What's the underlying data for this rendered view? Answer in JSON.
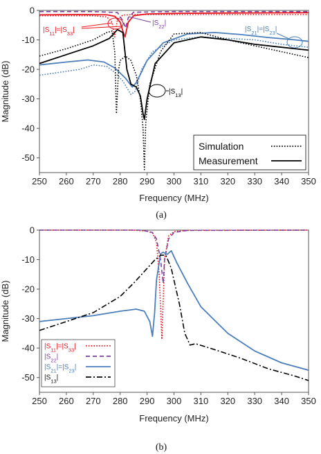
{
  "chart_data": [
    {
      "panel": "(a)",
      "type": "line",
      "xlabel": "Frequency (MHz)",
      "ylabel": "Magnitude (dB)",
      "xlim": [
        250,
        350
      ],
      "ylim": [
        -55,
        0
      ],
      "xticks": [
        250,
        260,
        270,
        280,
        290,
        300,
        310,
        320,
        330,
        340,
        350
      ],
      "yticks": [
        0,
        -10,
        -20,
        -30,
        -40,
        -50
      ],
      "legend": {
        "placement": "bottom-right",
        "entries": [
          {
            "label": "Simulation",
            "style": "dotted",
            "color": "#000000"
          },
          {
            "label": "Measurement",
            "style": "solid",
            "color": "#000000"
          }
        ]
      },
      "annotations": [
        {
          "text": "|S11|=|S33|",
          "color": "#e8141c"
        },
        {
          "text": "|S22|",
          "color": "#7b3fa0"
        },
        {
          "text": "|S21|=|S23|",
          "color": "#4a7ebb"
        },
        {
          "text": "|S13|",
          "color": "#000000"
        }
      ],
      "series": [
        {
          "label": "|S11|=|S33|",
          "style": "dotted",
          "color": "#e8141c",
          "x": [
            250,
            260,
            270,
            275,
            277,
            278,
            279,
            281,
            285,
            300,
            320,
            350
          ],
          "y": [
            -1.8,
            -1.8,
            -1.8,
            -2.2,
            -4,
            -9,
            -3,
            -1.6,
            -1.4,
            -1.4,
            -1.4,
            -1.4
          ]
        },
        {
          "label": "|S11|=|S33|",
          "style": "solid",
          "color": "#e8141c",
          "x": [
            250,
            265,
            275,
            278,
            280,
            281,
            281.8,
            283,
            285,
            290,
            300,
            320,
            350
          ],
          "y": [
            -1.5,
            -1.4,
            -1.5,
            -2,
            -4,
            -7,
            -9,
            -4,
            -1.8,
            -1.2,
            -1.0,
            -0.9,
            -0.8
          ]
        },
        {
          "label": "|S22|",
          "style": "dashed",
          "color": "#7b3fa0",
          "x": [
            250,
            270,
            279,
            281,
            282,
            283,
            285,
            300,
            350
          ],
          "y": [
            -0.4,
            -0.4,
            -0.7,
            -3.5,
            -6,
            -2.5,
            -0.6,
            -0.4,
            -0.4
          ]
        },
        {
          "label": "|S21|=|S23|",
          "style": "dotted",
          "color": "#4a7ebb",
          "x": [
            250,
            265,
            270,
            275,
            278,
            281,
            284,
            285.5,
            288,
            292,
            300,
            310,
            320,
            330,
            340,
            350
          ],
          "y": [
            -22,
            -20,
            -18.5,
            -19,
            -21,
            -24,
            -28.5,
            -27.5,
            -20,
            -14,
            -10,
            -9,
            -9.5,
            -10,
            -11.5,
            -12.5
          ]
        },
        {
          "label": "|S21|=|S23|",
          "style": "solid",
          "color": "#4a7ebb",
          "x": [
            250,
            260,
            268,
            274,
            278,
            282,
            284.5,
            286,
            290,
            296,
            305,
            315,
            325,
            335,
            345,
            350
          ],
          "y": [
            -18.5,
            -17.5,
            -16.8,
            -17.5,
            -19.5,
            -23,
            -26,
            -24.5,
            -17,
            -11,
            -8,
            -7.5,
            -8.2,
            -9.2,
            -10,
            -10.5
          ]
        },
        {
          "label": "|S13|",
          "style": "dotted",
          "color": "#000000",
          "x": [
            250,
            260,
            270,
            275,
            277,
            278,
            278.6,
            279.4,
            280,
            282,
            284,
            286,
            287.5,
            288.5,
            289,
            289.5,
            291,
            295,
            300,
            310,
            320,
            330,
            340,
            350
          ],
          "y": [
            -15.5,
            -13,
            -10,
            -7.5,
            -7,
            -14,
            -35,
            -20,
            -17,
            -15.5,
            -17,
            -22,
            -30,
            -40,
            -54,
            -38,
            -25,
            -14,
            -8,
            -7.5,
            -10,
            -12,
            -14,
            -16
          ]
        },
        {
          "label": "|S13|",
          "style": "solid",
          "color": "#000000",
          "x": [
            250,
            260,
            270,
            276,
            279,
            281,
            282.5,
            284,
            286,
            287.5,
            288.5,
            289,
            290,
            293,
            300,
            310,
            320,
            330,
            340,
            350
          ],
          "y": [
            -18,
            -15,
            -12,
            -9.5,
            -6.5,
            -7.5,
            -20,
            -25,
            -26,
            -29,
            -35,
            -37,
            -30,
            -18,
            -11,
            -9,
            -10,
            -11.5,
            -12.5,
            -13.5
          ]
        }
      ]
    },
    {
      "panel": "(b)",
      "type": "line",
      "xlabel": "Frequency (MHz)",
      "ylabel": "Magnitude (dB)",
      "xlim": [
        250,
        350
      ],
      "ylim": [
        -55,
        0
      ],
      "xticks": [
        250,
        260,
        270,
        280,
        290,
        300,
        310,
        320,
        330,
        340,
        350
      ],
      "yticks": [
        0,
        -10,
        -20,
        -30,
        -40,
        -50
      ],
      "legend": {
        "placement": "bottom-left",
        "entries": [
          {
            "label": "|S11|=|S33|",
            "style": "dotted",
            "color": "#e8141c"
          },
          {
            "label": "|S22|",
            "style": "dashed",
            "color": "#7b3fa0"
          },
          {
            "label": "|S21|=|S23|",
            "style": "solid",
            "color": "#4a7ebb"
          },
          {
            "label": "|S13|",
            "style": "dashdot",
            "color": "#000000"
          }
        ]
      },
      "series": [
        {
          "label": "|S11|=|S33|",
          "style": "dotted",
          "color": "#e8141c",
          "x": [
            250,
            285,
            290,
            292,
            293.5,
            294.5,
            295.5,
            296.5,
            298,
            300,
            305,
            350
          ],
          "y": [
            0,
            0,
            -0.3,
            -1,
            -4,
            -15,
            -37,
            -10,
            -2,
            -0.5,
            -0.1,
            0
          ]
        },
        {
          "label": "|S22|",
          "style": "dashed",
          "color": "#7b3fa0",
          "x": [
            250,
            288,
            292,
            293.5,
            295,
            296,
            296.5,
            298,
            300,
            305,
            350
          ],
          "y": [
            0,
            0,
            -0.8,
            -3,
            -10,
            -18,
            -10,
            -3,
            -0.8,
            -0.1,
            0
          ]
        },
        {
          "label": "|S21|=|S23|",
          "style": "solid",
          "color": "#4a7ebb",
          "x": [
            250,
            260,
            270,
            280,
            286,
            289,
            291,
            292,
            292.8,
            293.5,
            295,
            296,
            297.5,
            299,
            301,
            305,
            310,
            320,
            330,
            340,
            350
          ],
          "y": [
            -31,
            -30,
            -29,
            -27.5,
            -26.8,
            -27.5,
            -31,
            -36,
            -28,
            -17,
            -8,
            -7.5,
            -8.2,
            -7,
            -11,
            -18,
            -26,
            -35,
            -41,
            -45,
            -47.5
          ]
        },
        {
          "label": "|S13|",
          "style": "dashdot",
          "color": "#000000",
          "x": [
            250,
            260,
            270,
            280,
            285,
            290,
            293,
            295,
            297,
            299,
            302,
            304,
            306,
            308,
            315,
            325,
            335,
            345,
            350
          ],
          "y": [
            -34,
            -31,
            -28,
            -22.5,
            -18,
            -13,
            -10,
            -8.5,
            -8.5,
            -13,
            -25,
            -35,
            -39,
            -38.5,
            -40.5,
            -43.5,
            -47,
            -49.5,
            -51
          ]
        }
      ]
    }
  ],
  "captions": {
    "a": "(a)",
    "b": "(b)"
  }
}
